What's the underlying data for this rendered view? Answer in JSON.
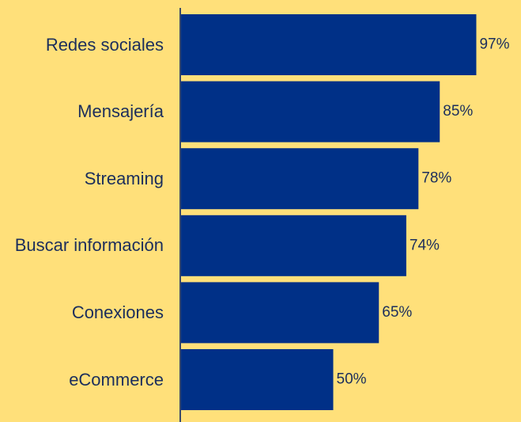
{
  "chart_data": {
    "type": "bar",
    "orientation": "horizontal",
    "categories": [
      "Redes sociales",
      "Mensajería",
      "Streaming",
      "Buscar información",
      "Conexiones",
      "eCommerce"
    ],
    "values": [
      97,
      85,
      78,
      74,
      65,
      50
    ],
    "value_labels": [
      "97%",
      "85%",
      "78%",
      "74%",
      "65%",
      "50%"
    ],
    "color": "#003087",
    "xlim": [
      0,
      100
    ]
  }
}
